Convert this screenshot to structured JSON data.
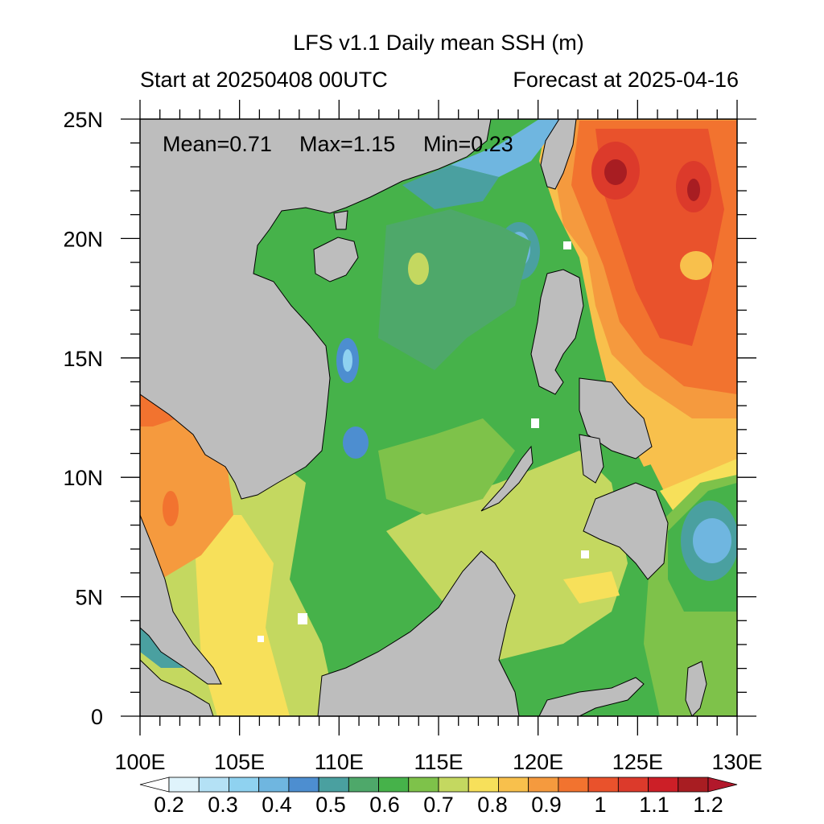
{
  "title": "LFS v1.1 Daily mean SSH (m)",
  "subtitle_left": "Start at 20250408 00UTC",
  "subtitle_right": "Forecast at 2025-04-16",
  "stats": {
    "mean": "Mean=0.71",
    "max": "Max=1.15",
    "min": "Min=0.23"
  },
  "axes": {
    "lon_range": [
      100,
      130
    ],
    "lat_range": [
      0,
      25
    ],
    "x_ticks": [
      "100E",
      "105E",
      "110E",
      "115E",
      "120E",
      "125E",
      "130E"
    ],
    "y_ticks": [
      "0",
      "5N",
      "10N",
      "15N",
      "20N",
      "25N"
    ]
  },
  "colorbar": {
    "labels": [
      "0.2",
      "0.3",
      "0.4",
      "0.5",
      "0.6",
      "0.7",
      "0.8",
      "0.9",
      "1",
      "1.1",
      "1.2"
    ],
    "colors": [
      "#ffffff",
      "#dff3fb",
      "#b4e1f5",
      "#8fd2f0",
      "#6fb6e0",
      "#4d8ed0",
      "#4aa0a0",
      "#4ea86a",
      "#46b24a",
      "#7ec24a",
      "#c4d860",
      "#f7e05a",
      "#f8c04c",
      "#f59a3e",
      "#f2732f",
      "#e9522c",
      "#dc3a2b",
      "#cc1f27",
      "#a81d22",
      "#b2182b"
    ]
  },
  "colors": {
    "land": "#bdbdbd",
    "ocean_base": "#46b24a"
  }
}
